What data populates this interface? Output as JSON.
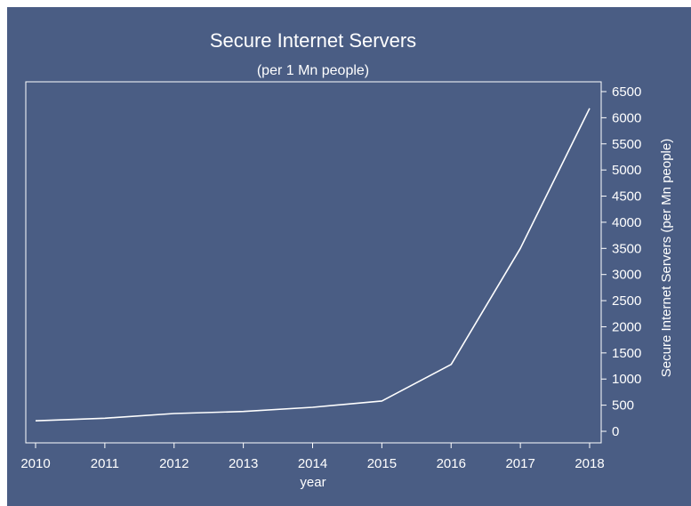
{
  "chart_data": {
    "type": "line",
    "title": "Secure Internet Servers",
    "subtitle": "(per  1 Mn people)",
    "xlabel": "year",
    "ylabel": "Secure Internet Servers (per Mn people)",
    "x": [
      2010,
      2011,
      2012,
      2013,
      2014,
      2015,
      2016,
      2017,
      2018
    ],
    "values": [
      200,
      250,
      340,
      380,
      460,
      580,
      1280,
      3500,
      6180
    ],
    "xlim": [
      2010,
      2018
    ],
    "ylim": [
      0,
      6500
    ],
    "y_axis_side": "right",
    "x_ticks": [
      "2010",
      "2011",
      "2012",
      "2013",
      "2014",
      "2015",
      "2016",
      "2017",
      "2018"
    ],
    "y_ticks": [
      "0",
      "500",
      "1000",
      "1500",
      "2000",
      "2500",
      "3000",
      "3500",
      "4000",
      "4500",
      "5000",
      "5500",
      "6000",
      "6500"
    ],
    "grid": false,
    "colors": {
      "background": "#4a5d84",
      "line": "#ffffff",
      "text": "#ffffff"
    }
  }
}
